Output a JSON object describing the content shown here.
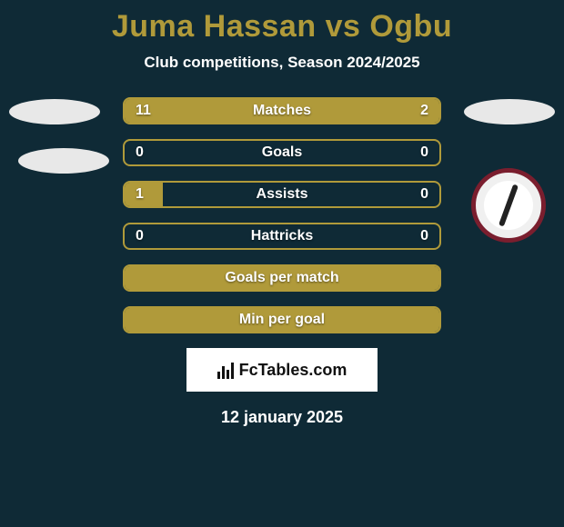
{
  "title_color": "#b09a3a",
  "player1": "Juma Hassan",
  "vs": "vs",
  "player2": "Ogbu",
  "subtitle": "Club competitions, Season 2024/2025",
  "rows": [
    {
      "label": "Matches",
      "left_val": "11",
      "right_val": "2",
      "left_pct": 78,
      "right_pct": 22,
      "show_vals": true,
      "full": false
    },
    {
      "label": "Goals",
      "left_val": "0",
      "right_val": "0",
      "left_pct": 0,
      "right_pct": 0,
      "show_vals": true,
      "full": false
    },
    {
      "label": "Assists",
      "left_val": "1",
      "right_val": "0",
      "left_pct": 12,
      "right_pct": 0,
      "show_vals": true,
      "full": false
    },
    {
      "label": "Hattricks",
      "left_val": "0",
      "right_val": "0",
      "left_pct": 0,
      "right_pct": 0,
      "show_vals": true,
      "full": false
    },
    {
      "label": "Goals per match",
      "left_val": "",
      "right_val": "",
      "left_pct": 0,
      "right_pct": 0,
      "show_vals": false,
      "full": true
    },
    {
      "label": "Min per goal",
      "left_val": "",
      "right_val": "",
      "left_pct": 0,
      "right_pct": 0,
      "show_vals": false,
      "full": true
    }
  ],
  "bar_color": "#b09a3a",
  "logo_text": "FcTables.com",
  "date": "12 january 2025"
}
